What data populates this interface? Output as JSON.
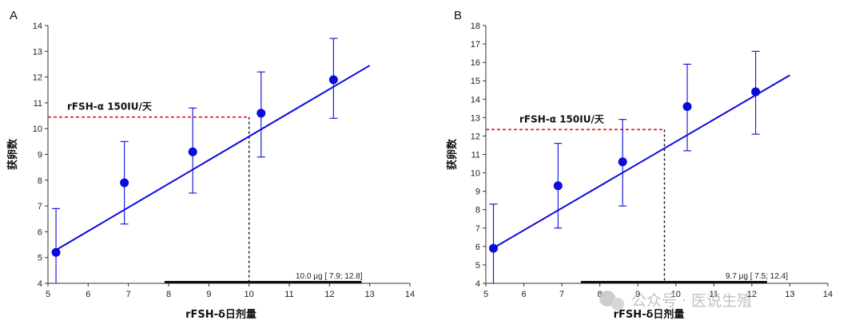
{
  "chart_data": [
    {
      "panel_label": "A",
      "type": "scatter",
      "xlabel": "rFSH-δ日剂量",
      "ylabel": "获卵数",
      "xlim": [
        5,
        14
      ],
      "ylim": [
        4,
        14
      ],
      "xticks": [
        "5",
        "6",
        "7",
        "8",
        "9",
        "10",
        "11",
        "12",
        "13",
        "14"
      ],
      "yticks": [
        "4",
        "5",
        "6",
        "7",
        "8",
        "9",
        "10",
        "11",
        "12",
        "13",
        "14"
      ],
      "points": [
        {
          "x": 5.2,
          "y": 5.2,
          "lo": 4.0,
          "hi": 6.9
        },
        {
          "x": 6.9,
          "y": 7.9,
          "lo": 6.3,
          "hi": 9.5
        },
        {
          "x": 8.6,
          "y": 9.1,
          "lo": 7.5,
          "hi": 10.8
        },
        {
          "x": 10.3,
          "y": 10.6,
          "lo": 8.9,
          "hi": 12.2
        },
        {
          "x": 12.1,
          "y": 11.9,
          "lo": 10.4,
          "hi": 13.5
        }
      ],
      "fit_line": {
        "x0": 5.1,
        "y0": 5.2,
        "x1": 13.0,
        "y1": 12.45
      },
      "reference": {
        "label": "rFSH-α 150IU/天",
        "y": 10.45,
        "x": 10.0
      },
      "ci": {
        "label": "10.0 μg [ 7.9; 12.8]",
        "low": 7.9,
        "high": 12.8
      },
      "colors": {
        "series": "#0b0bdc",
        "reference": "#e8161b",
        "line": "#111111"
      }
    },
    {
      "panel_label": "B",
      "type": "scatter",
      "xlabel": "rFSH-δ日剂量",
      "ylabel": "获卵数",
      "xlim": [
        5,
        14
      ],
      "ylim": [
        4,
        18
      ],
      "xticks": [
        "5",
        "6",
        "7",
        "8",
        "9",
        "10",
        "11",
        "12",
        "13",
        "14"
      ],
      "yticks": [
        "4",
        "5",
        "6",
        "7",
        "8",
        "9",
        "10",
        "11",
        "12",
        "13",
        "14",
        "15",
        "16",
        "17",
        "18"
      ],
      "points": [
        {
          "x": 5.2,
          "y": 5.9,
          "lo": 4.0,
          "hi": 8.3
        },
        {
          "x": 6.9,
          "y": 9.3,
          "lo": 7.0,
          "hi": 11.6
        },
        {
          "x": 8.6,
          "y": 10.6,
          "lo": 8.2,
          "hi": 12.9
        },
        {
          "x": 10.3,
          "y": 13.6,
          "lo": 11.2,
          "hi": 15.9
        },
        {
          "x": 12.1,
          "y": 14.4,
          "lo": 12.1,
          "hi": 16.6
        }
      ],
      "fit_line": {
        "x0": 5.1,
        "y0": 5.8,
        "x1": 13.0,
        "y1": 15.3
      },
      "reference": {
        "label": "rFSH-α 150IU/天",
        "y": 12.35,
        "x": 9.7
      },
      "ci": {
        "label": "9.7 μg [ 7.5; 12.4]",
        "low": 7.5,
        "high": 12.4
      },
      "colors": {
        "series": "#0b0bdc",
        "reference": "#e8161b",
        "line": "#111111"
      }
    }
  ],
  "watermark": {
    "text": "公众号 · 医说生殖",
    "icon": "wechat-icon"
  }
}
